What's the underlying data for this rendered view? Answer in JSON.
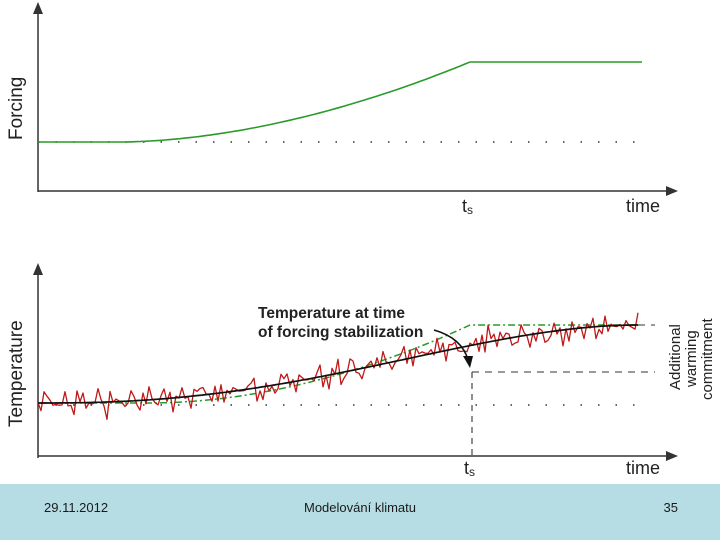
{
  "top_chart": {
    "ylabel": "Forcing",
    "ts_label": "t",
    "ts_subscript": "s",
    "xlabel": "time"
  },
  "bottom_chart": {
    "ylabel": "Temperature",
    "ts_label": "t",
    "ts_subscript": "s",
    "xlabel": "time",
    "annotation_line1": "Temperature at time",
    "annotation_line2": "of forcing stabilization",
    "side_line1": "Additional",
    "side_line2": "warming",
    "side_line3": "commitment"
  },
  "colors": {
    "forcing": "#2a9a2a",
    "noisy_temperature": "#c01818",
    "trend": "#111111",
    "equilibrium": "#2a9a2a",
    "axis": "#333333",
    "footer_bg": "#b7dde4"
  },
  "footer": {
    "date": "29.11.2012",
    "title": "Modelování klimatu",
    "page": "35"
  }
}
